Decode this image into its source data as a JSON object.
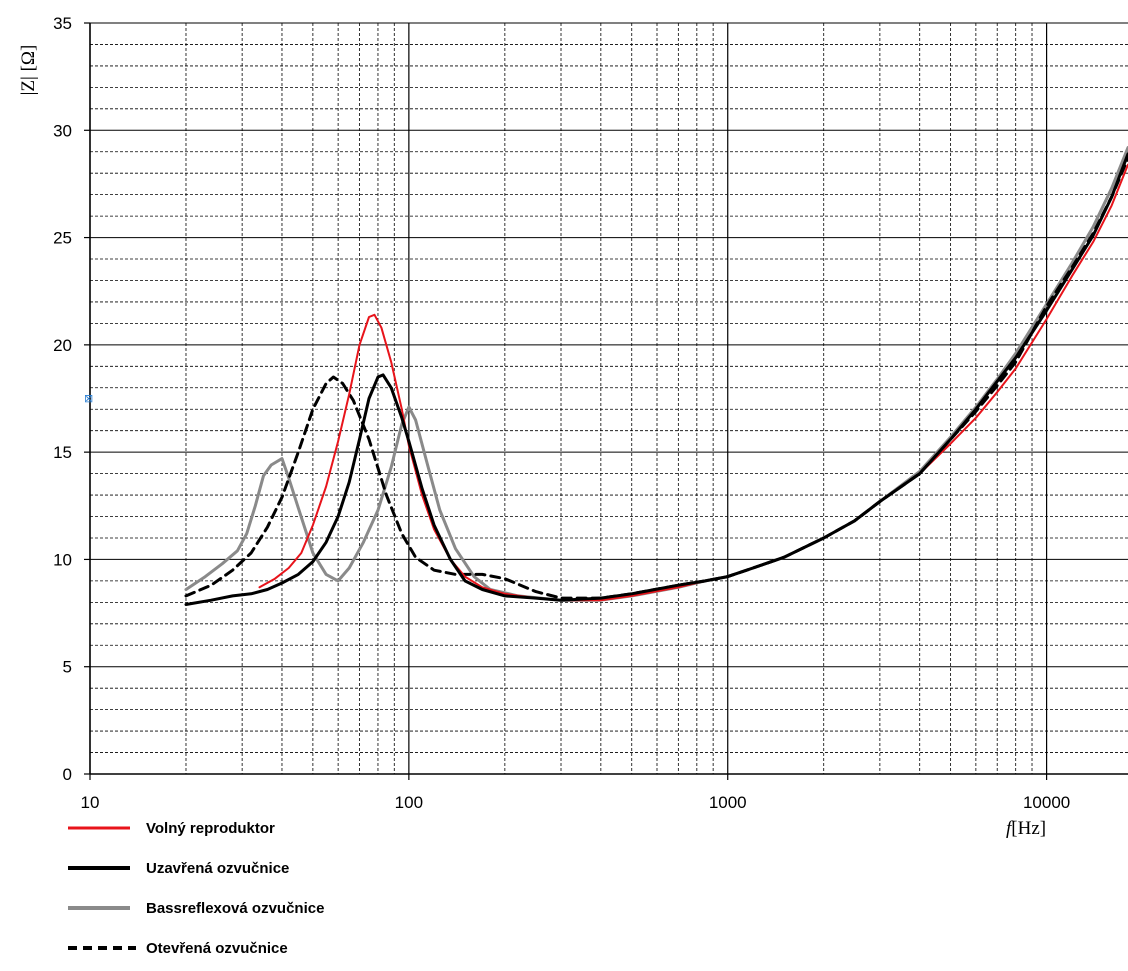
{
  "chart_data": {
    "type": "line",
    "title": "",
    "xlabel": "f[Hz]",
    "ylabel": "|Z| [Ω]",
    "x_scale": "log",
    "xlim": [
      10,
      18000
    ],
    "ylim": [
      0,
      35
    ],
    "x_ticks": [
      10,
      100,
      1000,
      10000
    ],
    "x_tick_labels": [
      "10",
      "100",
      "1000",
      "10000"
    ],
    "y_ticks": [
      0,
      5,
      10,
      15,
      20,
      25,
      30,
      35
    ],
    "y_tick_labels": [
      "0",
      "5",
      "10",
      "15",
      "20",
      "25",
      "30",
      "35"
    ],
    "grid": true,
    "legend_position": "bottom-left",
    "series": [
      {
        "name": "Volný reproduktor",
        "color": "#e8141b",
        "style": "solid",
        "points": [
          [
            34,
            8.7
          ],
          [
            38,
            9.1
          ],
          [
            42,
            9.6
          ],
          [
            46,
            10.3
          ],
          [
            50,
            11.6
          ],
          [
            55,
            13.4
          ],
          [
            60,
            15.5
          ],
          [
            65,
            17.7
          ],
          [
            70,
            20.0
          ],
          [
            75,
            21.3
          ],
          [
            78,
            21.4
          ],
          [
            82,
            20.8
          ],
          [
            88,
            19.2
          ],
          [
            95,
            17.0
          ],
          [
            100,
            15.3
          ],
          [
            110,
            13.0
          ],
          [
            120,
            11.4
          ],
          [
            135,
            10.0
          ],
          [
            150,
            9.2
          ],
          [
            170,
            8.7
          ],
          [
            200,
            8.4
          ],
          [
            250,
            8.2
          ],
          [
            300,
            8.1
          ],
          [
            400,
            8.1
          ],
          [
            500,
            8.3
          ],
          [
            700,
            8.7
          ],
          [
            850,
            9.0
          ],
          [
            1000,
            9.2
          ],
          [
            1200,
            9.6
          ],
          [
            1500,
            10.1
          ],
          [
            2000,
            11.0
          ],
          [
            2500,
            11.8
          ],
          [
            3000,
            12.7
          ],
          [
            4000,
            14.0
          ],
          [
            5000,
            15.4
          ],
          [
            6000,
            16.6
          ],
          [
            7000,
            17.8
          ],
          [
            8000,
            18.9
          ],
          [
            10000,
            21.2
          ],
          [
            12000,
            23.2
          ],
          [
            14000,
            24.8
          ],
          [
            16000,
            26.5
          ],
          [
            18000,
            28.4
          ]
        ]
      },
      {
        "name": "Uzavřená ozvučnice",
        "color": "#000000",
        "style": "solid",
        "points": [
          [
            20,
            7.9
          ],
          [
            24,
            8.1
          ],
          [
            28,
            8.3
          ],
          [
            32,
            8.4
          ],
          [
            36,
            8.6
          ],
          [
            40,
            8.9
          ],
          [
            45,
            9.3
          ],
          [
            50,
            9.9
          ],
          [
            55,
            10.8
          ],
          [
            60,
            12.0
          ],
          [
            65,
            13.6
          ],
          [
            70,
            15.6
          ],
          [
            75,
            17.5
          ],
          [
            80,
            18.5
          ],
          [
            83,
            18.6
          ],
          [
            88,
            18.0
          ],
          [
            95,
            16.6
          ],
          [
            100,
            15.5
          ],
          [
            110,
            13.3
          ],
          [
            120,
            11.6
          ],
          [
            135,
            10.0
          ],
          [
            150,
            9.0
          ],
          [
            170,
            8.6
          ],
          [
            200,
            8.3
          ],
          [
            250,
            8.2
          ],
          [
            300,
            8.1
          ],
          [
            400,
            8.2
          ],
          [
            500,
            8.4
          ],
          [
            700,
            8.8
          ],
          [
            850,
            9.0
          ],
          [
            1000,
            9.2
          ],
          [
            1200,
            9.6
          ],
          [
            1500,
            10.1
          ],
          [
            2000,
            11.0
          ],
          [
            2500,
            11.8
          ],
          [
            3000,
            12.7
          ],
          [
            4000,
            14.0
          ],
          [
            5000,
            15.6
          ],
          [
            6000,
            17.0
          ],
          [
            7000,
            18.3
          ],
          [
            8000,
            19.4
          ],
          [
            10000,
            21.6
          ],
          [
            12000,
            23.5
          ],
          [
            14000,
            25.1
          ],
          [
            16000,
            26.9
          ],
          [
            18000,
            28.9
          ]
        ]
      },
      {
        "name": "Bassreflexová ozvučnice",
        "color": "#8a8a8a",
        "style": "solid",
        "points": [
          [
            20,
            8.6
          ],
          [
            23,
            9.2
          ],
          [
            26,
            9.8
          ],
          [
            29,
            10.4
          ],
          [
            31,
            11.2
          ],
          [
            33,
            12.5
          ],
          [
            35,
            13.9
          ],
          [
            37,
            14.4
          ],
          [
            40,
            14.7
          ],
          [
            42,
            13.8
          ],
          [
            45,
            12.4
          ],
          [
            50,
            10.3
          ],
          [
            55,
            9.3
          ],
          [
            60,
            9.0
          ],
          [
            65,
            9.6
          ],
          [
            72,
            10.8
          ],
          [
            80,
            12.3
          ],
          [
            88,
            14.3
          ],
          [
            95,
            16.3
          ],
          [
            100,
            17.1
          ],
          [
            105,
            16.5
          ],
          [
            115,
            14.3
          ],
          [
            125,
            12.3
          ],
          [
            140,
            10.5
          ],
          [
            160,
            9.2
          ],
          [
            180,
            8.6
          ],
          [
            220,
            8.3
          ],
          [
            300,
            8.1
          ],
          [
            400,
            8.1
          ],
          [
            500,
            8.3
          ],
          [
            700,
            8.7
          ],
          [
            850,
            9.0
          ],
          [
            1000,
            9.2
          ],
          [
            1200,
            9.6
          ],
          [
            1500,
            10.1
          ],
          [
            2000,
            11.0
          ],
          [
            2500,
            11.8
          ],
          [
            3000,
            12.7
          ],
          [
            4000,
            14.1
          ],
          [
            5000,
            15.7
          ],
          [
            6000,
            17.1
          ],
          [
            7000,
            18.4
          ],
          [
            8000,
            19.6
          ],
          [
            10000,
            21.9
          ],
          [
            12000,
            23.8
          ],
          [
            14000,
            25.5
          ],
          [
            16000,
            27.3
          ],
          [
            18000,
            29.2
          ]
        ]
      },
      {
        "name": "Otevřená ozvučnice",
        "color": "#000000",
        "style": "dashed",
        "points": [
          [
            20,
            8.3
          ],
          [
            24,
            8.8
          ],
          [
            28,
            9.5
          ],
          [
            32,
            10.3
          ],
          [
            36,
            11.5
          ],
          [
            40,
            12.9
          ],
          [
            45,
            15.0
          ],
          [
            50,
            17.0
          ],
          [
            55,
            18.2
          ],
          [
            58,
            18.5
          ],
          [
            62,
            18.2
          ],
          [
            67,
            17.4
          ],
          [
            75,
            15.6
          ],
          [
            85,
            13.0
          ],
          [
            95,
            11.2
          ],
          [
            105,
            10.1
          ],
          [
            120,
            9.5
          ],
          [
            140,
            9.3
          ],
          [
            170,
            9.3
          ],
          [
            200,
            9.1
          ],
          [
            250,
            8.5
          ],
          [
            300,
            8.2
          ],
          [
            400,
            8.2
          ],
          [
            500,
            8.4
          ],
          [
            700,
            8.8
          ],
          [
            850,
            9.0
          ],
          [
            1000,
            9.2
          ],
          [
            1200,
            9.6
          ],
          [
            1500,
            10.1
          ],
          [
            2000,
            11.0
          ],
          [
            2500,
            11.8
          ],
          [
            3000,
            12.7
          ],
          [
            4000,
            14.0
          ],
          [
            5000,
            15.6
          ],
          [
            6000,
            16.9
          ],
          [
            7000,
            18.1
          ],
          [
            8000,
            19.2
          ],
          [
            10000,
            21.8
          ],
          [
            12000,
            23.6
          ],
          [
            14000,
            25.2
          ],
          [
            16000,
            26.9
          ],
          [
            18000,
            28.7
          ]
        ]
      }
    ]
  },
  "marker_glyph": "⊠"
}
